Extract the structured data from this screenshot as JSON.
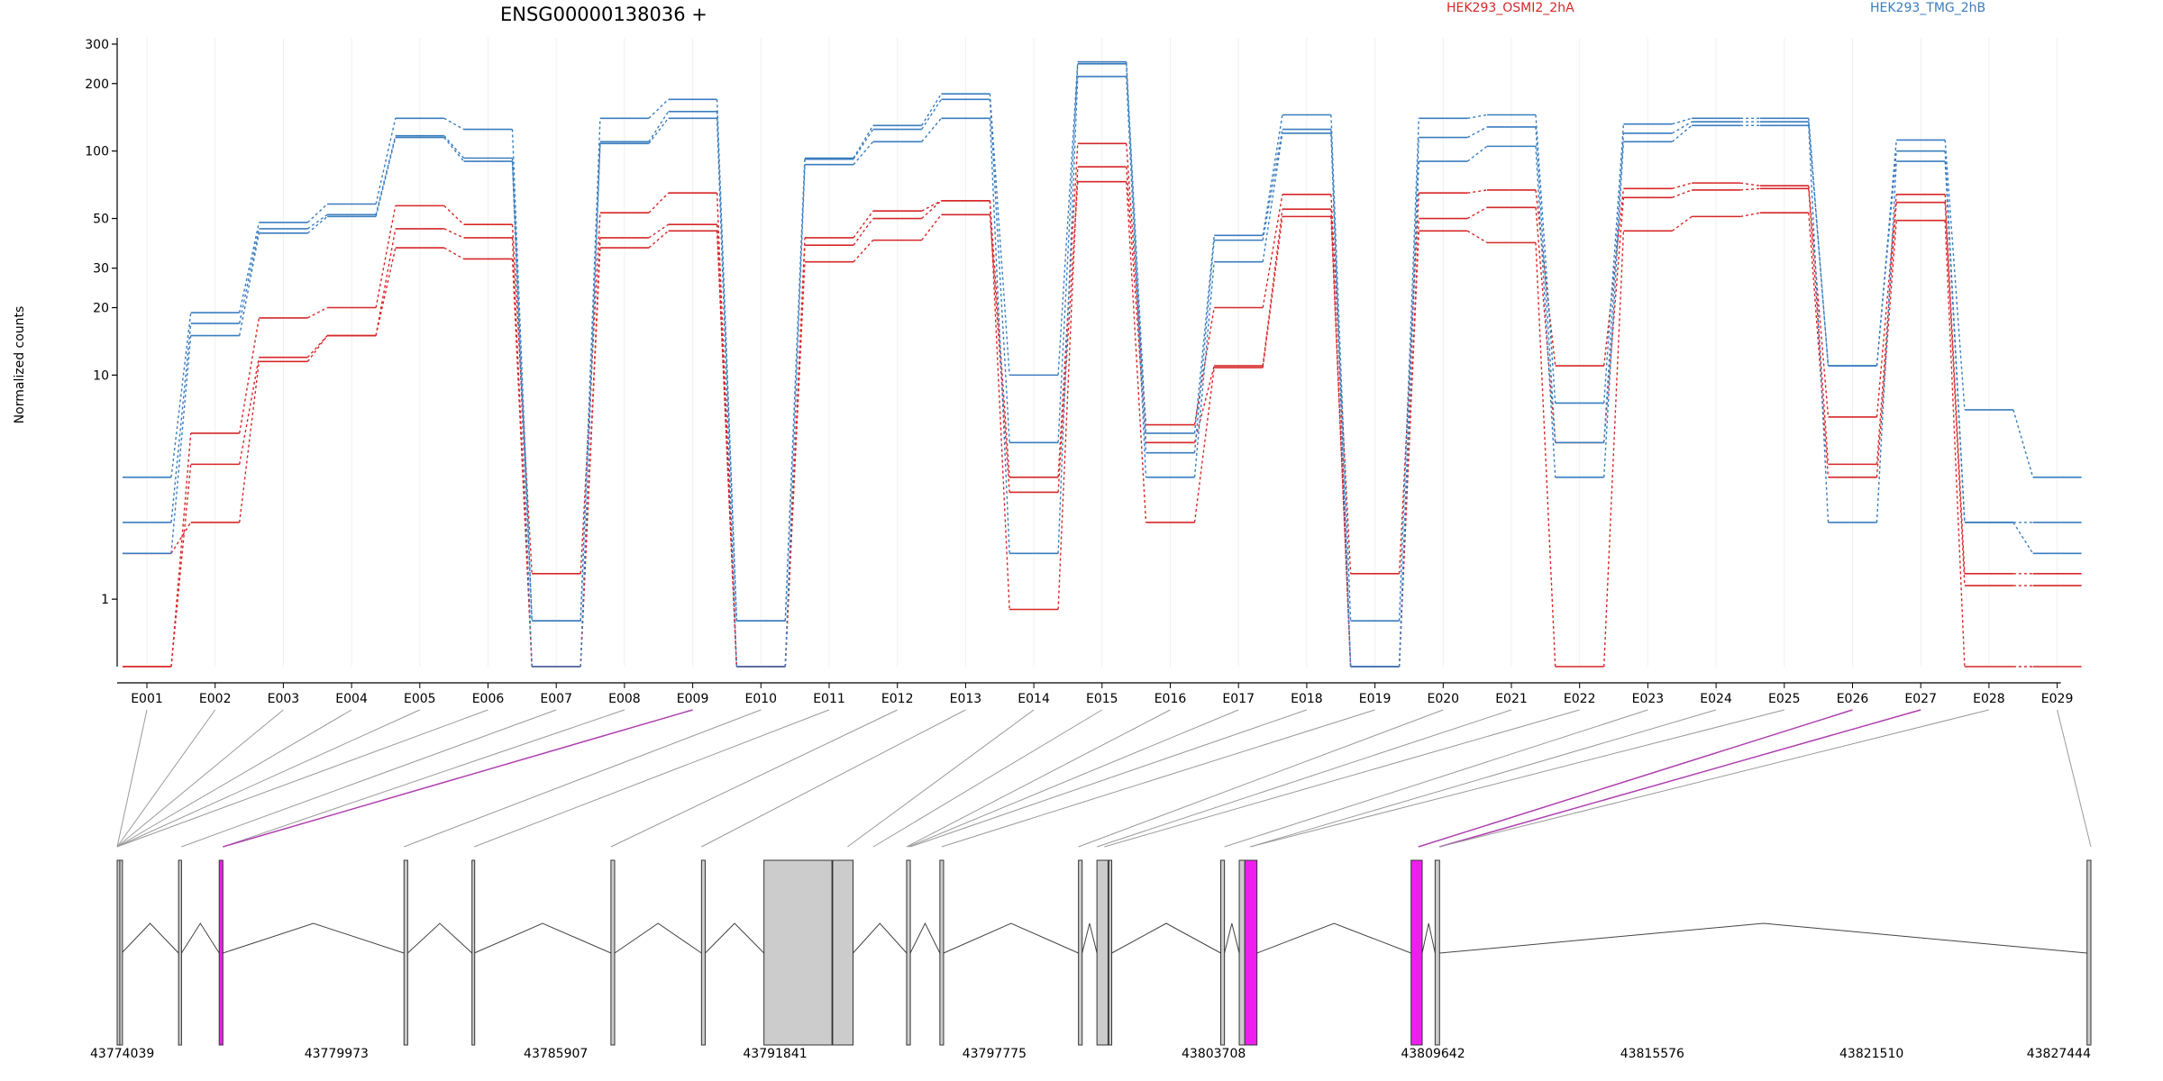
{
  "title": "ENSG00000138036 +",
  "ylabel": "Normalized counts",
  "legend": [
    {
      "name": "HEK293_OSMI2_2hA",
      "color": "#d62728"
    },
    {
      "name": "HEK293_TMG_2hB",
      "color": "#3a7dbf"
    }
  ],
  "colors": {
    "osmi": "#d62728",
    "tmg": "#3a7dbf",
    "highlight": "#ee1fee",
    "exon_fill": "#cccccc",
    "link_hi": "#b040b0"
  },
  "chart_data": {
    "type": "line",
    "y_scale": "log",
    "ylim": [
      0.5,
      320
    ],
    "yticks": [
      1,
      10,
      20,
      30,
      50,
      100,
      200,
      300
    ],
    "xlabel": "",
    "ylabel": "Normalized counts",
    "categories": [
      "E001",
      "E002",
      "E003",
      "E004",
      "E005",
      "E006",
      "E007",
      "E008",
      "E009",
      "E010",
      "E011",
      "E012",
      "E013",
      "E014",
      "E015",
      "E016",
      "E017",
      "E018",
      "E019",
      "E020",
      "E021",
      "E022",
      "E023",
      "E024",
      "E025",
      "E026",
      "E027",
      "E028",
      "E029"
    ],
    "series": [
      {
        "name": "HEK293_OSMI2_2hA",
        "group": "osmi",
        "values": [
          0.5,
          5.5,
          18,
          20,
          57,
          47,
          1.3,
          53,
          65,
          0.5,
          41,
          54,
          60,
          3.5,
          108,
          6,
          20,
          64,
          1.3,
          65,
          67,
          11,
          68,
          72,
          70,
          6.5,
          64,
          1.3,
          1.3
        ]
      },
      {
        "name": "HEK293_OSMI2_2hA",
        "group": "osmi",
        "values": [
          0.5,
          4,
          12,
          15,
          45,
          41,
          0.5,
          41,
          47,
          0.5,
          38,
          50,
          60,
          0.9,
          85,
          5,
          11,
          55,
          0.5,
          50,
          56,
          5,
          62,
          67,
          68,
          4,
          59,
          1.15,
          1.15
        ]
      },
      {
        "name": "HEK293_OSMI2_2hA",
        "group": "osmi",
        "values": [
          1.6,
          2.2,
          11.5,
          15,
          37,
          33,
          0.5,
          37,
          44,
          0.5,
          32,
          40,
          52,
          3,
          73,
          2.2,
          10.8,
          51,
          0.5,
          44,
          39,
          0.5,
          44,
          51,
          53,
          3.5,
          49,
          0.5,
          0.5
        ]
      },
      {
        "name": "HEK293_TMG_2hB",
        "group": "tmg",
        "values": [
          3.5,
          19,
          48,
          58,
          140,
          125,
          0.8,
          140,
          170,
          0.8,
          93,
          130,
          180,
          10,
          250,
          5.5,
          42,
          145,
          0.8,
          140,
          145,
          7.5,
          132,
          140,
          140,
          11,
          112,
          7,
          3.5
        ]
      },
      {
        "name": "HEK293_TMG_2hB",
        "group": "tmg",
        "values": [
          2.2,
          17,
          45,
          52,
          117,
          93,
          0.8,
          110,
          150,
          0.8,
          92,
          125,
          170,
          5,
          245,
          4.5,
          40,
          125,
          0.5,
          115,
          128,
          5,
          120,
          135,
          135,
          11,
          100,
          2.2,
          2.2
        ]
      },
      {
        "name": "HEK293_TMG_2hB",
        "group": "tmg",
        "values": [
          1.6,
          15,
          43,
          51,
          115,
          90,
          0.5,
          108,
          140,
          0.5,
          87,
          110,
          140,
          1.6,
          215,
          3.5,
          32,
          120,
          0.5,
          90,
          105,
          3.5,
          110,
          130,
          130,
          2.2,
          90,
          2.2,
          1.6
        ]
      }
    ],
    "gene_coords": {
      "start": 43774039,
      "end": 43827444
    },
    "coordinate_ticks": [
      43774039,
      43779973,
      43785907,
      43791841,
      43797775,
      43803708,
      43809642,
      43815576,
      43821510,
      43827444
    ],
    "exons": [
      {
        "start": 43774039,
        "end": 43774070,
        "highlight": false
      },
      {
        "start": 43774110,
        "end": 43774160,
        "highlight": false
      },
      {
        "start": 43775700,
        "end": 43775780,
        "highlight": false
      },
      {
        "start": 43776800,
        "end": 43776900,
        "highlight": true
      },
      {
        "start": 43781800,
        "end": 43781900,
        "highlight": false
      },
      {
        "start": 43783640,
        "end": 43783700,
        "highlight": false
      },
      {
        "start": 43787400,
        "end": 43787500,
        "highlight": false
      },
      {
        "start": 43789850,
        "end": 43789950,
        "highlight": false
      },
      {
        "start": 43791540,
        "end": 43793380,
        "highlight": false
      },
      {
        "start": 43793400,
        "end": 43793950,
        "highlight": false
      },
      {
        "start": 43795400,
        "end": 43795500,
        "highlight": false
      },
      {
        "start": 43796300,
        "end": 43796400,
        "highlight": false
      },
      {
        "start": 43800050,
        "end": 43800150,
        "highlight": false
      },
      {
        "start": 43800550,
        "end": 43800850,
        "highlight": false
      },
      {
        "start": 43800870,
        "end": 43800950,
        "highlight": false
      },
      {
        "start": 43803900,
        "end": 43804000,
        "highlight": false
      },
      {
        "start": 43804400,
        "end": 43804550,
        "highlight": false
      },
      {
        "start": 43804550,
        "end": 43804880,
        "highlight": true
      },
      {
        "start": 43809050,
        "end": 43809350,
        "highlight": true
      },
      {
        "start": 43809700,
        "end": 43809820,
        "highlight": false
      },
      {
        "start": 43827340,
        "end": 43827444,
        "highlight": false
      }
    ],
    "exon_gene_position": [
      43774039,
      43774039,
      43774039,
      43774039,
      43774039,
      43774039,
      43775780,
      43776900,
      43776900,
      43781800,
      43783700,
      43787400,
      43789850,
      43793800,
      43794500,
      43795400,
      43795450,
      43795500,
      43796350,
      43800050,
      43800550,
      43800750,
      43804000,
      43804700,
      43804700,
      43809250,
      43809820,
      43809820,
      43827444
    ],
    "highlight_links": [
      8,
      25,
      26
    ]
  }
}
